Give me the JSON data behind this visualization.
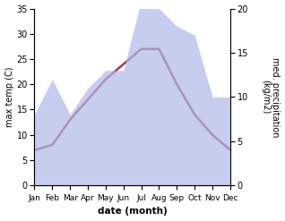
{
  "months": [
    "Jan",
    "Feb",
    "Mar",
    "Apr",
    "May",
    "Jun",
    "Jul",
    "Aug",
    "Sep",
    "Oct",
    "Nov",
    "Dec"
  ],
  "max_temp": [
    7,
    8,
    13,
    17,
    21,
    24,
    27,
    27,
    20,
    14,
    10,
    7
  ],
  "precipitation": [
    8,
    12,
    8,
    11,
    13,
    13,
    21,
    20,
    18,
    17,
    10,
    10
  ],
  "temp_color": "#9e3a4e",
  "precip_fill_color": "#b0b8e8",
  "temp_ylim": [
    0,
    35
  ],
  "precip_ylim": [
    0,
    20
  ],
  "ylabel_left": "max temp (C)",
  "ylabel_right": "med. precipitation\n(kg/m2)",
  "xlabel": "date (month)",
  "temp_linewidth": 1.8,
  "yticks_left": [
    0,
    5,
    10,
    15,
    20,
    25,
    30,
    35
  ],
  "yticks_right": [
    0,
    5,
    10,
    15,
    20
  ],
  "bg_color": "#ffffff"
}
